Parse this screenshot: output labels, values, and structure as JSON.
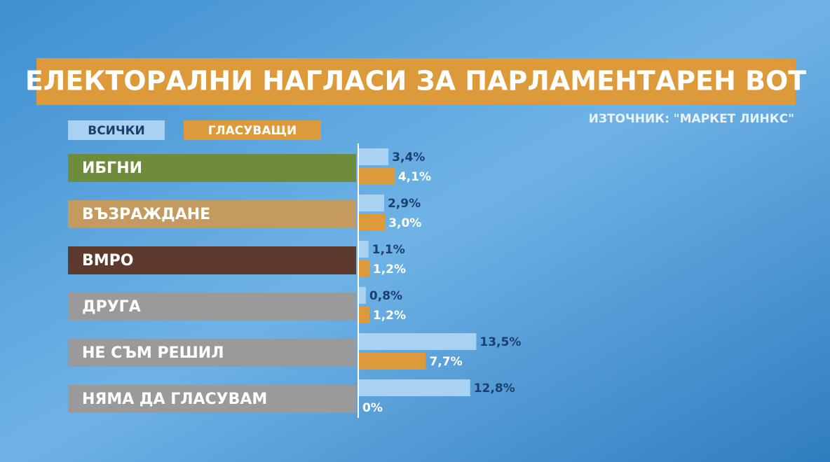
{
  "chart_data": {
    "type": "bar",
    "orientation": "horizontal",
    "title": "ЕЛЕКТОРАЛНИ НАГЛАСИ ЗА ПАРЛАМЕНТАРЕН ВОТ",
    "source": "ИЗТОЧНИК: \"МАРКЕТ ЛИНКС\"",
    "categories": [
      "ИБГНИ",
      "ВЪЗРАЖДАНЕ",
      "ВМРО",
      "ДРУГА",
      "НЕ СЪМ РЕШИЛ",
      "НЯМА ДА ГЛАСУВАМ"
    ],
    "category_colors": [
      "#6f8b3c",
      "#c49a5e",
      "#5d3a2d",
      "#9a9a9a",
      "#9a9a9a",
      "#9a9a9a"
    ],
    "series": [
      {
        "name": "ВСИЧКИ",
        "color": "#a9d1f2",
        "values": [
          3.4,
          2.9,
          1.1,
          0.8,
          13.5,
          12.8
        ],
        "value_labels": [
          "3,4%",
          "2,9%",
          "1,1%",
          "0,8%",
          "13,5%",
          "12,8%"
        ]
      },
      {
        "name": "ГЛАСУВАЩИ",
        "color": "#dc9a3a",
        "values": [
          4.1,
          3.0,
          1.2,
          1.2,
          7.7,
          0
        ],
        "value_labels": [
          "4,1%",
          "3,0%",
          "1,2%",
          "1,2%",
          "7,7%",
          "0%"
        ]
      }
    ]
  }
}
